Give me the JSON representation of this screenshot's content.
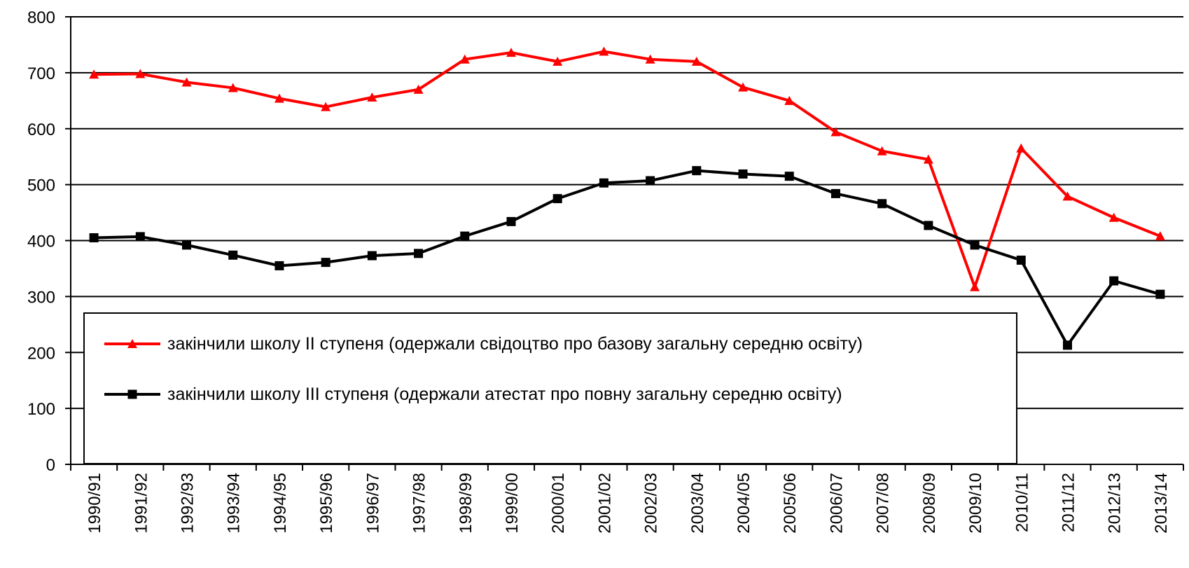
{
  "chart_data": {
    "type": "line",
    "categories": [
      "1990/91",
      "1991/92",
      "1992/93",
      "1993/94",
      "1994/95",
      "1995/96",
      "1996/97",
      "1997/98",
      "1998/99",
      "1999/00",
      "2000/01",
      "2001/02",
      "2002/03",
      "2003/04",
      "2004/05",
      "2005/06",
      "2006/07",
      "2007/08",
      "2008/09",
      "2009/10",
      "2010/11",
      "2011/12",
      "2012/13",
      "2013/14"
    ],
    "series": [
      {
        "name": "закінчили школу II ступеня (одержали свідоцтво про базову загальну середню освіту)",
        "color": "#ff0000",
        "marker": "triangle",
        "values": [
          697,
          698,
          683,
          673,
          654,
          639,
          656,
          670,
          724,
          736,
          720,
          738,
          724,
          720,
          674,
          650,
          594,
          560,
          545,
          317,
          565,
          479,
          441,
          408
        ]
      },
      {
        "name": "закінчили школу III ступеня (одержали атестат про повну загальну середню освіту)",
        "color": "#000000",
        "marker": "square",
        "values": [
          405,
          407,
          392,
          374,
          355,
          361,
          373,
          377,
          408,
          434,
          475,
          503,
          507,
          525,
          519,
          515,
          484,
          466,
          427,
          392,
          365,
          213,
          328,
          304
        ]
      }
    ],
    "ylim": [
      0,
      800
    ],
    "yticks": [
      0,
      100,
      200,
      300,
      400,
      500,
      600,
      700,
      800
    ],
    "grid": true
  }
}
